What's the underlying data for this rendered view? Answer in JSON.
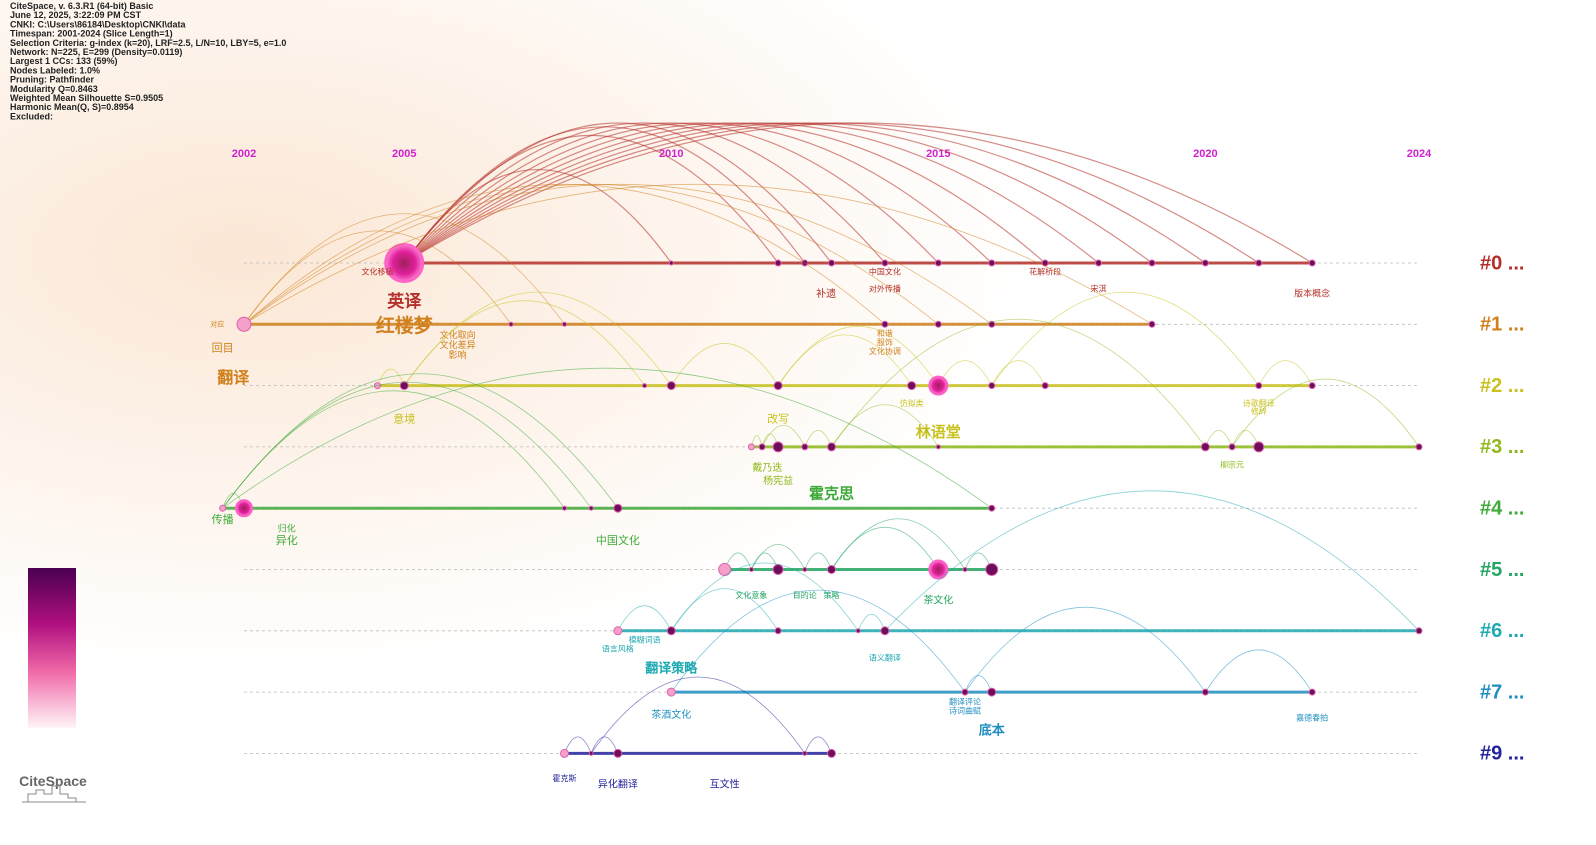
{
  "chart_data": {
    "type": "timeline",
    "info": [
      "CiteSpace, v. 6.3.R1 (64-bit) Basic",
      "June 12, 2025, 3:22:09 PM CST",
      "CNKI: C:\\Users\\86184\\Desktop\\CNKI\\data",
      "Timespan: 2001-2024 (Slice Length=1)",
      "Selection Criteria: g-index (k=20), LRF=2.5, L/N=10, LBY=5, e=1.0",
      "Network: N=225, E=299 (Density=0.0119)",
      "Largest 1 CCs: 133 (59%)",
      "Nodes Labeled: 1.0%",
      "Pruning: Pathfinder",
      "Modularity Q=0.8463",
      "Weighted Mean Silhouette S=0.9505",
      "Harmonic Mean(Q, S)=0.8954",
      "Excluded:"
    ],
    "xlim": [
      2002,
      2024
    ],
    "xticks": [
      2002,
      2005,
      2010,
      2015,
      2020,
      2024
    ],
    "logo": "CiteSpace",
    "clusters": [
      {
        "name": "#0 ...",
        "color": "#b5302a",
        "years": [
          2005,
          2010,
          2012,
          2012.5,
          2013,
          2014,
          2015,
          2016,
          2017,
          2018,
          2019,
          2020,
          2021,
          2022
        ],
        "labels": [
          {
            "text": "文化移植",
            "year": 2004.5
          },
          {
            "text": "英译",
            "year": 2005
          },
          {
            "text": "中国文化",
            "year": 2014
          },
          {
            "text": "补遗",
            "year": 2012.9
          },
          {
            "text": "对外传播",
            "year": 2014
          },
          {
            "text": "花解桥段",
            "year": 2017
          },
          {
            "text": "宋淇",
            "year": 2018
          },
          {
            "text": "版本概念",
            "year": 2022
          }
        ]
      },
      {
        "name": "#1 ...",
        "color": "#d0801c",
        "years": [
          2002,
          2007,
          2008,
          2014,
          2015,
          2016,
          2019
        ],
        "labels": [
          {
            "text": "对应",
            "year": 2001.5
          },
          {
            "text": "回目",
            "year": 2001.6
          },
          {
            "text": "红楼梦",
            "year": 2005
          },
          {
            "text": "文化取向",
            "year": 2006
          },
          {
            "text": "文化差异",
            "year": 2006
          },
          {
            "text": "影响",
            "year": 2006
          },
          {
            "text": "和谐",
            "year": 2014
          },
          {
            "text": "服饰",
            "year": 2014
          },
          {
            "text": "文化协调",
            "year": 2014
          },
          {
            "text": "翻译",
            "year": 2001.8
          }
        ]
      },
      {
        "name": "#2 ...",
        "color": "#c9c21e",
        "years": [
          2004.5,
          2005,
          2009.5,
          2010,
          2012,
          2014.5,
          2015,
          2016,
          2017,
          2021,
          2022
        ],
        "labels": [
          {
            "text": "意境",
            "year": 2005
          },
          {
            "text": "改写",
            "year": 2012
          },
          {
            "text": "仿拟类",
            "year": 2014.5
          },
          {
            "text": "林语堂",
            "year": 2015
          },
          {
            "text": "诗歌翻译",
            "year": 2021
          },
          {
            "text": "修辞",
            "year": 2021
          }
        ]
      },
      {
        "name": "#3 ...",
        "color": "#8fb91c",
        "years": [
          2011.5,
          2011.7,
          2012,
          2012.5,
          2013,
          2015,
          2020,
          2020.5,
          2021,
          2024
        ],
        "labels": [
          {
            "text": "戴乃迭",
            "year": 2011.8
          },
          {
            "text": "杨宪益",
            "year": 2012
          },
          {
            "text": "柳宗元",
            "year": 2020.5
          }
        ]
      },
      {
        "name": "#4 ...",
        "color": "#3faa3a",
        "years": [
          2001.6,
          2002,
          2008,
          2008.5,
          2009,
          2016
        ],
        "labels": [
          {
            "text": "传播",
            "year": 2001.6
          },
          {
            "text": "归化",
            "year": 2002.8
          },
          {
            "text": "异化",
            "year": 2002.8
          },
          {
            "text": "霍克思",
            "year": 2013
          },
          {
            "text": "中国文化",
            "year": 2009
          }
        ]
      },
      {
        "name": "#5 ...",
        "color": "#22a662",
        "years": [
          2011,
          2011.5,
          2012,
          2012.5,
          2013,
          2015,
          2015.5,
          2016
        ],
        "labels": [
          {
            "text": "文化意象",
            "year": 2011.5
          },
          {
            "text": "目的论",
            "year": 2012.5
          },
          {
            "text": "策略",
            "year": 2013
          },
          {
            "text": "茶文化",
            "year": 2015
          }
        ]
      },
      {
        "name": "#6 ...",
        "color": "#1fa9b3",
        "years": [
          2009,
          2010,
          2012,
          2013.5,
          2014,
          2024
        ],
        "labels": [
          {
            "text": "模糊词语",
            "year": 2009.5
          },
          {
            "text": "语言风格",
            "year": 2009
          },
          {
            "text": "翻译策略",
            "year": 2010
          },
          {
            "text": "语义翻译",
            "year": 2014
          }
        ]
      },
      {
        "name": "#7 ...",
        "color": "#1f8fc2",
        "years": [
          2010,
          2015.5,
          2016,
          2020,
          2022
        ],
        "labels": [
          {
            "text": "茶酒文化",
            "year": 2010
          },
          {
            "text": "翻译评论",
            "year": 2015.5
          },
          {
            "text": "诗词曲赋",
            "year": 2015.5
          },
          {
            "text": "底本",
            "year": 2016
          },
          {
            "text": "嘉德春拍",
            "year": 2022
          }
        ]
      },
      {
        "name": "#9 ...",
        "color": "#23239c",
        "years": [
          2008,
          2008.5,
          2009,
          2012.5,
          2013
        ],
        "labels": [
          {
            "text": "霍克斯",
            "year": 2008
          },
          {
            "text": "异化翻译",
            "year": 2009
          },
          {
            "text": "互文性",
            "year": 2011
          }
        ]
      }
    ]
  }
}
